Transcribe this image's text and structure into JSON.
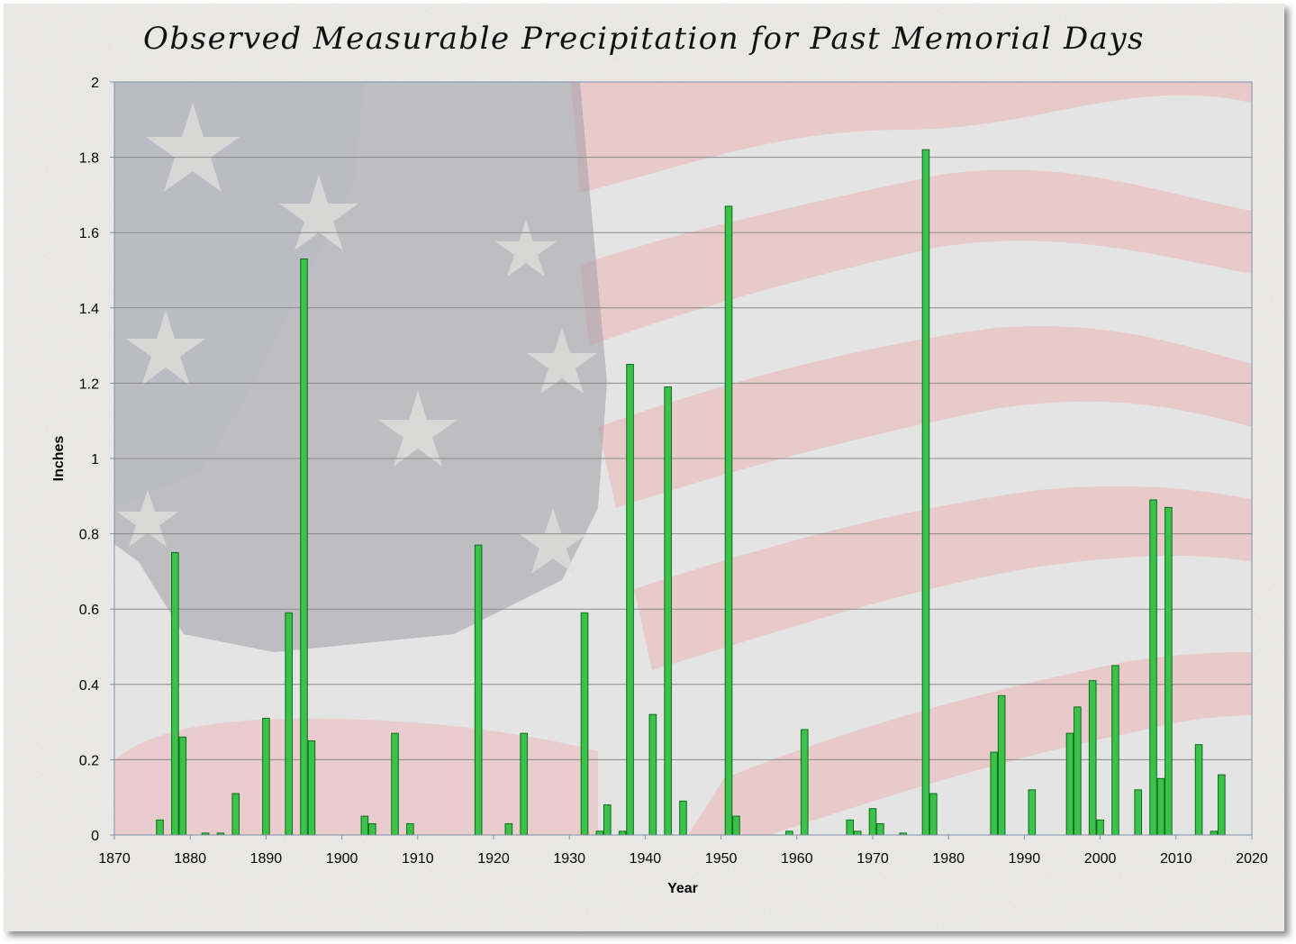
{
  "chart_data": {
    "type": "bar",
    "title": "Observed Measurable Precipitation for Past Memorial Days",
    "xlabel": "Year",
    "ylabel": "Inches",
    "xlim": [
      1870,
      2020
    ],
    "ylim": [
      0,
      2
    ],
    "x_ticks": [
      1870,
      1880,
      1890,
      1900,
      1910,
      1920,
      1930,
      1940,
      1950,
      1960,
      1970,
      1980,
      1990,
      2000,
      2010,
      2020
    ],
    "y_ticks": [
      0,
      0.2,
      0.4,
      0.6,
      0.8,
      1,
      1.2,
      1.4,
      1.6,
      1.8,
      2
    ],
    "y_tick_labels": [
      "0",
      "0.2",
      "0.4",
      "0.6",
      "0.8",
      "1",
      "1.2",
      "1.4",
      "1.6",
      "1.8",
      "2"
    ],
    "grid": "horizontal",
    "legend": "none",
    "bar_color": "#3bc24b",
    "bar_edge_color": "#0d6b18",
    "years": [
      1876,
      1878,
      1879,
      1882,
      1884,
      1886,
      1890,
      1893,
      1895,
      1896,
      1903,
      1904,
      1907,
      1909,
      1918,
      1922,
      1924,
      1932,
      1934,
      1935,
      1937,
      1938,
      1941,
      1943,
      1945,
      1951,
      1952,
      1959,
      1961,
      1967,
      1968,
      1970,
      1971,
      1974,
      1977,
      1978,
      1986,
      1987,
      1991,
      1996,
      1997,
      1999,
      2000,
      2002,
      2005,
      2007,
      2008,
      2009,
      2013,
      2015,
      2016
    ],
    "values": [
      0.04,
      0.75,
      0.26,
      0.005,
      0.005,
      0.11,
      0.31,
      0.59,
      1.53,
      0.25,
      0.05,
      0.03,
      0.27,
      0.03,
      0.77,
      0.03,
      0.27,
      0.59,
      0.01,
      0.08,
      0.01,
      1.25,
      0.32,
      1.19,
      0.09,
      1.67,
      0.05,
      0.01,
      0.28,
      0.04,
      0.01,
      0.07,
      0.03,
      0.005,
      1.82,
      0.11,
      0.22,
      0.37,
      0.12,
      0.27,
      0.34,
      0.41,
      0.04,
      0.45,
      0.12,
      0.89,
      0.15,
      0.87,
      0.24,
      0.01,
      0.16
    ]
  }
}
